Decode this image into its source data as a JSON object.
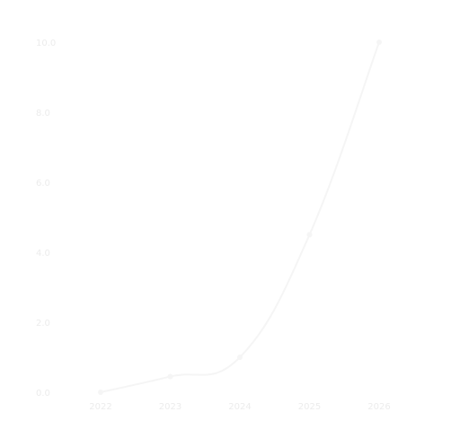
{
  "chart_data": {
    "type": "line",
    "title": "",
    "xlabel": "",
    "ylabel": "",
    "categories": [
      "2022",
      "2023",
      "2024",
      "2025",
      "2026"
    ],
    "x_tick_labels": [
      "2022",
      "2023",
      "2024",
      "2025",
      "2026"
    ],
    "y_tick_labels": [
      "0.0",
      "2.0",
      "4.0",
      "6.0",
      "8.0",
      "10.0"
    ],
    "ylim": [
      0,
      10
    ],
    "grid": false,
    "series": [
      {
        "values": [
          0.0,
          0.45,
          1.0,
          4.5,
          10.0
        ],
        "color": "#f5f5f5"
      }
    ]
  }
}
